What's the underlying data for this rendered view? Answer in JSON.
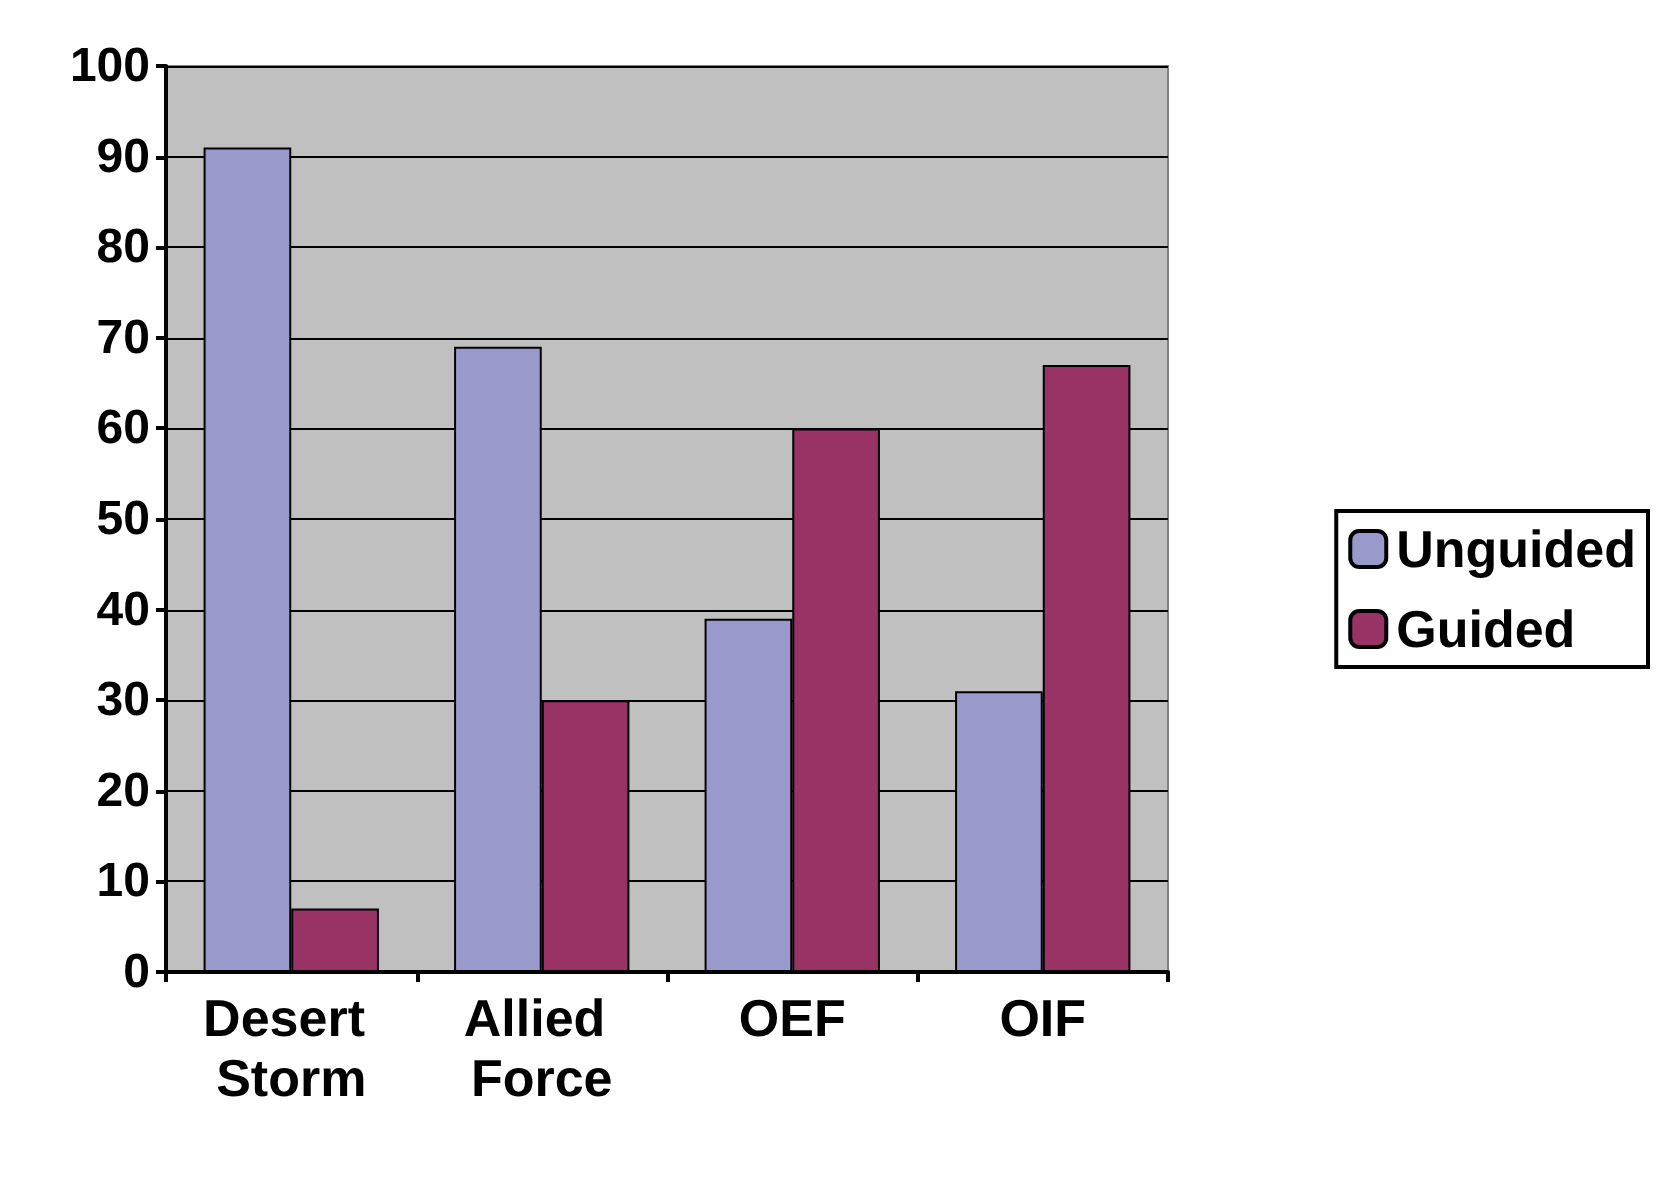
{
  "chart_data": {
    "type": "bar",
    "categories": [
      "Desert Storm",
      "Allied Force",
      "OEF",
      "OIF"
    ],
    "series": [
      {
        "name": "Unguided",
        "color": "#9999cc",
        "values": [
          91,
          69,
          39,
          31
        ]
      },
      {
        "name": "Guided",
        "color": "#993366",
        "values": [
          7,
          30,
          60,
          67
        ]
      }
    ],
    "ylim": [
      0,
      100
    ],
    "yticks": [
      0,
      10,
      20,
      30,
      40,
      50,
      60,
      70,
      80,
      90,
      100
    ],
    "grid": "y",
    "legend": "right"
  }
}
